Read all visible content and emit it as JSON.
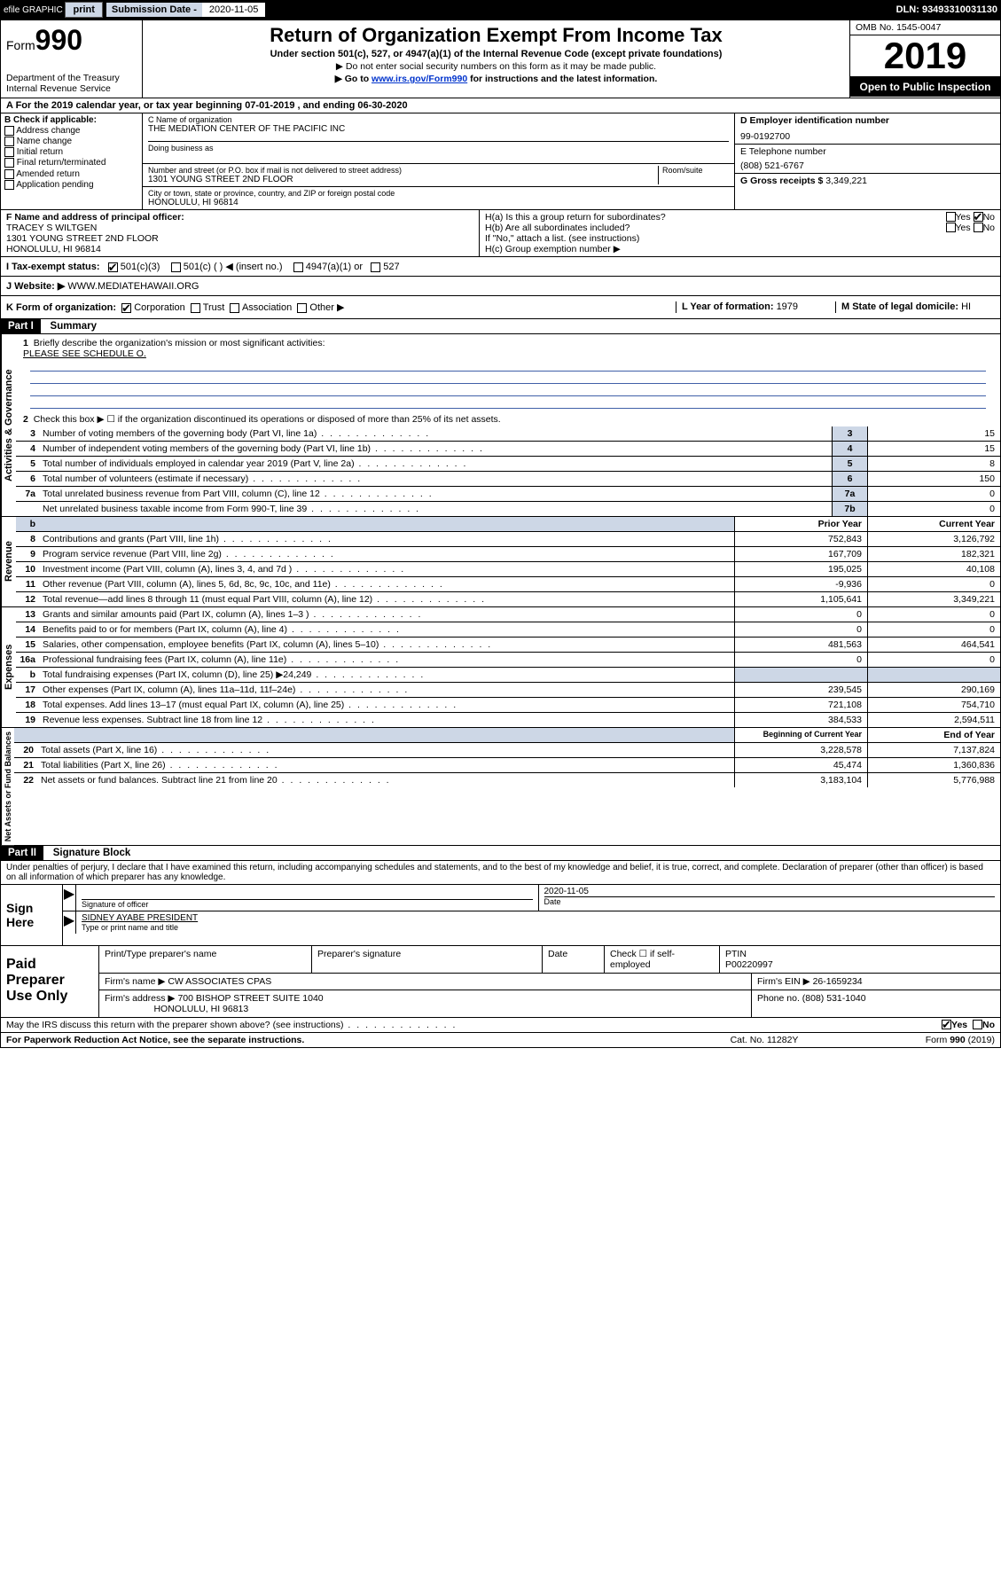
{
  "topbar": {
    "efile": "efile GRAPHIC",
    "print": "print",
    "sub_label": "Submission Date - ",
    "sub_date": "2020-11-05",
    "dln": "DLN: 93493310031130"
  },
  "hdr": {
    "form_prefix": "Form",
    "form_num": "990",
    "dept": "Department of the Treasury\nInternal Revenue Service",
    "title": "Return of Organization Exempt From Income Tax",
    "sub": "Under section 501(c), 527, or 4947(a)(1) of the Internal Revenue Code (except private foundations)",
    "note1": "▶ Do not enter social security numbers on this form as it may be made public.",
    "note2_pre": "▶ Go to ",
    "note2_link": "www.irs.gov/Form990",
    "note2_post": " for instructions and the latest information.",
    "omb": "OMB No. 1545-0047",
    "year": "2019",
    "open": "Open to Public Inspection"
  },
  "rowA": "A  For the 2019 calendar year, or tax year beginning 07-01-2019    , and ending 06-30-2020",
  "colB": {
    "title": "B Check if applicable:",
    "items": [
      "Address change",
      "Name change",
      "Initial return",
      "Final return/terminated",
      "Amended return",
      "Application pending"
    ]
  },
  "colC": {
    "name_lbl": "C Name of organization",
    "name": "THE MEDIATION CENTER OF THE PACIFIC INC",
    "dba_lbl": "Doing business as",
    "addr_lbl": "Number and street (or P.O. box if mail is not delivered to street address)",
    "room_lbl": "Room/suite",
    "addr": "1301 YOUNG STREET 2ND FLOOR",
    "city_lbl": "City or town, state or province, country, and ZIP or foreign postal code",
    "city": "HONOLULU, HI  96814"
  },
  "colD": {
    "ein_lbl": "D Employer identification number",
    "ein": "99-0192700",
    "tel_lbl": "E Telephone number",
    "tel": "(808) 521-6767",
    "gross_lbl": "G Gross receipts $ ",
    "gross": "3,349,221"
  },
  "rowF": {
    "lbl": "F  Name and address of principal officer:",
    "name": "TRACEY S WILTGEN",
    "addr": "1301 YOUNG STREET 2ND FLOOR",
    "city": "HONOLULU, HI  96814"
  },
  "rowH": {
    "ha": "H(a)  Is this a group return for subordinates?",
    "hb": "H(b)  Are all subordinates included?",
    "hb_note": "If \"No,\" attach a list. (see instructions)",
    "hc": "H(c)  Group exemption number ▶",
    "yes": "Yes",
    "no": "No"
  },
  "rowI": {
    "lbl": "I   Tax-exempt status:",
    "o1": "501(c)(3)",
    "o2": "501(c) (   ) ◀ (insert no.)",
    "o3": "4947(a)(1) or",
    "o4": "527"
  },
  "rowJ": {
    "lbl": "J   Website: ▶ ",
    "val": "WWW.MEDIATEHAWAII.ORG"
  },
  "rowK": {
    "lbl": "K Form of organization:",
    "o1": "Corporation",
    "o2": "Trust",
    "o3": "Association",
    "o4": "Other ▶",
    "l_lbl": "L Year of formation: ",
    "l_val": "1979",
    "m_lbl": "M State of legal domicile: ",
    "m_val": "HI"
  },
  "part1": {
    "hdr": "Part I",
    "title": "Summary",
    "q1": "Briefly describe the organization's mission or most significant activities:",
    "q1v": "PLEASE SEE SCHEDULE O.",
    "q2": "Check this box ▶ ☐  if the organization discontinued its operations or disposed of more than 25% of its net assets.",
    "lines_ag": [
      {
        "n": "3",
        "t": "Number of voting members of the governing body (Part VI, line 1a)",
        "b": "3",
        "v": "15"
      },
      {
        "n": "4",
        "t": "Number of independent voting members of the governing body (Part VI, line 1b)",
        "b": "4",
        "v": "15"
      },
      {
        "n": "5",
        "t": "Total number of individuals employed in calendar year 2019 (Part V, line 2a)",
        "b": "5",
        "v": "8"
      },
      {
        "n": "6",
        "t": "Total number of volunteers (estimate if necessary)",
        "b": "6",
        "v": "150"
      },
      {
        "n": "7a",
        "t": "Total unrelated business revenue from Part VIII, column (C), line 12",
        "b": "7a",
        "v": "0"
      },
      {
        "n": "",
        "t": "Net unrelated business taxable income from Form 990-T, line 39",
        "b": "7b",
        "v": "0"
      }
    ],
    "col_prior": "Prior Year",
    "col_curr": "Current Year",
    "rev": [
      {
        "n": "8",
        "t": "Contributions and grants (Part VIII, line 1h)",
        "p": "752,843",
        "c": "3,126,792"
      },
      {
        "n": "9",
        "t": "Program service revenue (Part VIII, line 2g)",
        "p": "167,709",
        "c": "182,321"
      },
      {
        "n": "10",
        "t": "Investment income (Part VIII, column (A), lines 3, 4, and 7d )",
        "p": "195,025",
        "c": "40,108"
      },
      {
        "n": "11",
        "t": "Other revenue (Part VIII, column (A), lines 5, 6d, 8c, 9c, 10c, and 11e)",
        "p": "-9,936",
        "c": "0"
      },
      {
        "n": "12",
        "t": "Total revenue—add lines 8 through 11 (must equal Part VIII, column (A), line 12)",
        "p": "1,105,641",
        "c": "3,349,221"
      }
    ],
    "exp": [
      {
        "n": "13",
        "t": "Grants and similar amounts paid (Part IX, column (A), lines 1–3 )",
        "p": "0",
        "c": "0"
      },
      {
        "n": "14",
        "t": "Benefits paid to or for members (Part IX, column (A), line 4)",
        "p": "0",
        "c": "0"
      },
      {
        "n": "15",
        "t": "Salaries, other compensation, employee benefits (Part IX, column (A), lines 5–10)",
        "p": "481,563",
        "c": "464,541"
      },
      {
        "n": "16a",
        "t": "Professional fundraising fees (Part IX, column (A), line 11e)",
        "p": "0",
        "c": "0"
      },
      {
        "n": "b",
        "t": "Total fundraising expenses (Part IX, column (D), line 25) ▶24,249",
        "p": "",
        "c": "",
        "shade": true
      },
      {
        "n": "17",
        "t": "Other expenses (Part IX, column (A), lines 11a–11d, 11f–24e)",
        "p": "239,545",
        "c": "290,169"
      },
      {
        "n": "18",
        "t": "Total expenses. Add lines 13–17 (must equal Part IX, column (A), line 25)",
        "p": "721,108",
        "c": "754,710"
      },
      {
        "n": "19",
        "t": "Revenue less expenses. Subtract line 18 from line 12",
        "p": "384,533",
        "c": "2,594,511"
      }
    ],
    "col_beg": "Beginning of Current Year",
    "col_end": "End of Year",
    "net": [
      {
        "n": "20",
        "t": "Total assets (Part X, line 16)",
        "p": "3,228,578",
        "c": "7,137,824"
      },
      {
        "n": "21",
        "t": "Total liabilities (Part X, line 26)",
        "p": "45,474",
        "c": "1,360,836"
      },
      {
        "n": "22",
        "t": "Net assets or fund balances. Subtract line 21 from line 20",
        "p": "3,183,104",
        "c": "5,776,988"
      }
    ],
    "side_ag": "Activities & Governance",
    "side_rev": "Revenue",
    "side_exp": "Expenses",
    "side_net": "Net Assets or Fund Balances"
  },
  "part2": {
    "hdr": "Part II",
    "title": "Signature Block",
    "decl": "Under penalties of perjury, I declare that I have examined this return, including accompanying schedules and statements, and to the best of my knowledge and belief, it is true, correct, and complete. Declaration of preparer (other than officer) is based on all information of which preparer has any knowledge."
  },
  "sign": {
    "here": "Sign Here",
    "sig_lbl": "Signature of officer",
    "date_lbl": "Date",
    "date": "2020-11-05",
    "name": "SIDNEY AYABE PRESIDENT",
    "name_lbl": "Type or print name and title"
  },
  "paid": {
    "title": "Paid Preparer Use Only",
    "h1": "Print/Type preparer's name",
    "h2": "Preparer's signature",
    "h3": "Date",
    "h4_pre": "Check ☐ if self-employed",
    "h5": "PTIN",
    "ptin": "P00220997",
    "firm_lbl": "Firm's name   ▶ ",
    "firm": "CW ASSOCIATES CPAS",
    "ein_lbl": "Firm's EIN ▶ ",
    "ein": "26-1659234",
    "addr_lbl": "Firm's address ▶ ",
    "addr": "700 BISHOP STREET SUITE 1040",
    "city": "HONOLULU, HI  96813",
    "ph_lbl": "Phone no. ",
    "ph": "(808) 531-1040"
  },
  "footer": {
    "q": "May the IRS discuss this return with the preparer shown above? (see instructions)",
    "yes": "Yes",
    "no": "No",
    "pra": "For Paperwork Reduction Act Notice, see the separate instructions.",
    "cat": "Cat. No. 11282Y",
    "form": "Form 990 (2019)"
  }
}
